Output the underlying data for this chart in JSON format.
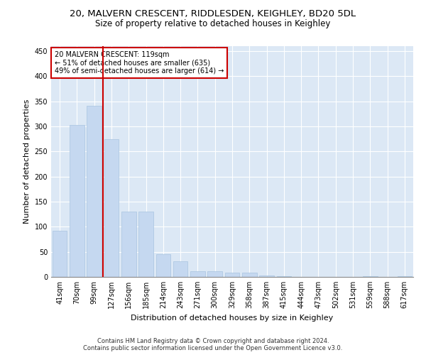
{
  "title": "20, MALVERN CRESCENT, RIDDLESDEN, KEIGHLEY, BD20 5DL",
  "subtitle": "Size of property relative to detached houses in Keighley",
  "xlabel": "Distribution of detached houses by size in Keighley",
  "ylabel": "Number of detached properties",
  "categories": [
    "41sqm",
    "70sqm",
    "99sqm",
    "127sqm",
    "156sqm",
    "185sqm",
    "214sqm",
    "243sqm",
    "271sqm",
    "300sqm",
    "329sqm",
    "358sqm",
    "387sqm",
    "415sqm",
    "444sqm",
    "473sqm",
    "502sqm",
    "531sqm",
    "559sqm",
    "588sqm",
    "617sqm"
  ],
  "values": [
    92,
    303,
    341,
    275,
    130,
    130,
    46,
    31,
    12,
    12,
    8,
    9,
    3,
    1,
    0,
    0,
    0,
    0,
    1,
    0,
    1
  ],
  "bar_color": "#c5d8f0",
  "bar_edge_color": "#a8c4e0",
  "vline_x": 2.5,
  "vline_color": "#cc0000",
  "annotation_box_text": "20 MALVERN CRESCENT: 119sqm\n← 51% of detached houses are smaller (635)\n49% of semi-detached houses are larger (614) →",
  "annotation_box_color": "#cc0000",
  "annotation_box_bg": "#ffffff",
  "ylim": [
    0,
    460
  ],
  "yticks": [
    0,
    50,
    100,
    150,
    200,
    250,
    300,
    350,
    400,
    450
  ],
  "bg_color": "#dce8f5",
  "footer_line1": "Contains HM Land Registry data © Crown copyright and database right 2024.",
  "footer_line2": "Contains public sector information licensed under the Open Government Licence v3.0.",
  "title_fontsize": 9.5,
  "subtitle_fontsize": 8.5,
  "xlabel_fontsize": 8,
  "ylabel_fontsize": 8,
  "annotation_fontsize": 7,
  "tick_fontsize": 7
}
